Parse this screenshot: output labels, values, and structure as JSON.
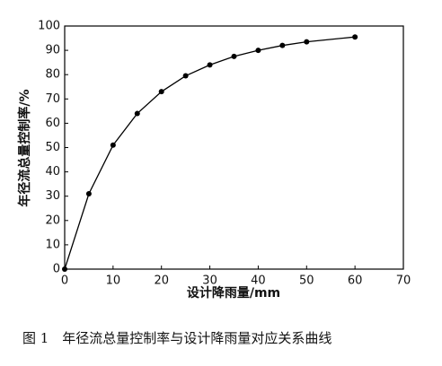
{
  "chart_data": {
    "type": "line",
    "x_label": "设计降雨量/mm",
    "y_label": "年径流总量控制率/%",
    "caption": "图 1　年径流总量控制率与设计降雨量对应关系曲线",
    "x": [
      0,
      5,
      10,
      15,
      20,
      25,
      30,
      35,
      40,
      45,
      50,
      60
    ],
    "series": [
      {
        "name": "年径流总量控制率",
        "color": "#000000",
        "values": [
          0,
          31,
          51,
          64,
          73,
          79.5,
          84,
          87.5,
          90,
          92,
          93.5,
          95.5
        ]
      }
    ],
    "xlim": [
      0,
      70
    ],
    "xticks": [
      0,
      10,
      20,
      30,
      40,
      50,
      60,
      70
    ],
    "ylim": [
      0,
      100
    ],
    "yticks": [
      0,
      10,
      20,
      30,
      40,
      50,
      60,
      70,
      80,
      90,
      100
    ]
  }
}
